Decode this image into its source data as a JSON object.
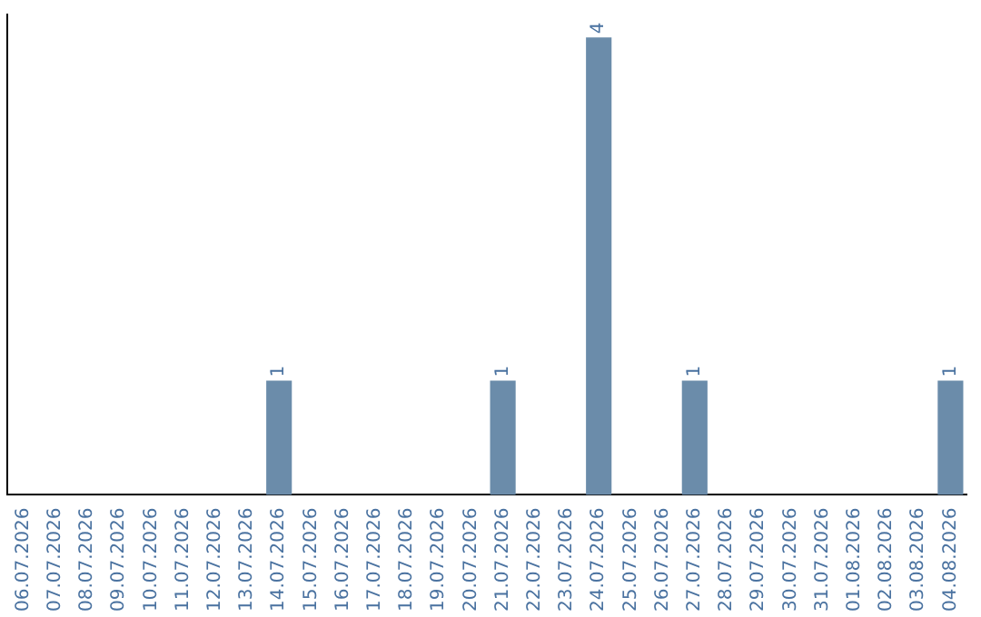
{
  "chart_data": {
    "type": "bar",
    "categories": [
      "06.07.2026",
      "07.07.2026",
      "08.07.2026",
      "09.07.2026",
      "10.07.2026",
      "11.07.2026",
      "12.07.2026",
      "13.07.2026",
      "14.07.2026",
      "15.07.2026",
      "16.07.2026",
      "17.07.2026",
      "18.07.2026",
      "19.07.2026",
      "20.07.2026",
      "21.07.2026",
      "22.07.2026",
      "23.07.2026",
      "24.07.2026",
      "25.07.2026",
      "26.07.2026",
      "27.07.2026",
      "28.07.2026",
      "29.07.2026",
      "30.07.2026",
      "31.07.2026",
      "01.08.2026",
      "02.08.2026",
      "03.08.2026",
      "04.08.2026"
    ],
    "values": [
      0,
      0,
      0,
      0,
      0,
      0,
      0,
      0,
      1,
      0,
      0,
      0,
      0,
      0,
      0,
      1,
      0,
      0,
      4,
      0,
      0,
      1,
      0,
      0,
      0,
      0,
      0,
      0,
      0,
      1
    ],
    "value_labels": [
      null,
      null,
      null,
      null,
      null,
      null,
      null,
      null,
      "1",
      null,
      null,
      null,
      null,
      null,
      null,
      "1",
      null,
      null,
      "4",
      null,
      null,
      "1",
      null,
      null,
      null,
      null,
      null,
      null,
      null,
      "1"
    ],
    "color": "#6b8caa",
    "ylim": [
      0,
      4.2
    ],
    "tick_labels": "x",
    "grid": false,
    "legend": false
  }
}
